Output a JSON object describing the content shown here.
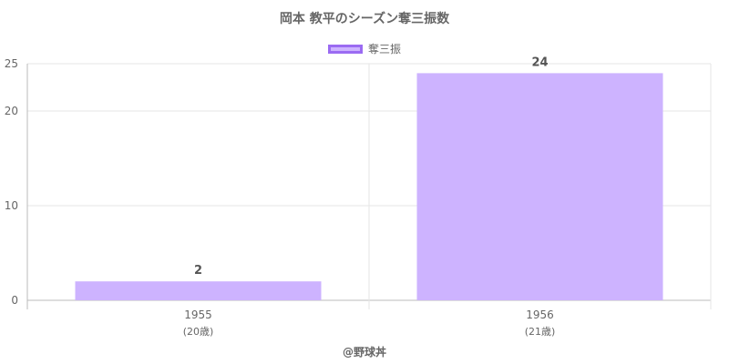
{
  "title": "岡本 教平のシーズン奪三振数",
  "legend": {
    "label": "奪三振",
    "swatch_fill": "#cdb3ff",
    "swatch_border": "#9b6bf2"
  },
  "credit": "@野球丼",
  "chart_data": {
    "type": "bar",
    "categories": [
      "1955",
      "1956"
    ],
    "sublabels": [
      "(20歳)",
      "(21歳)"
    ],
    "series": [
      {
        "name": "奪三振",
        "values": [
          2,
          24
        ]
      }
    ],
    "data_labels": [
      "2",
      "24"
    ],
    "yticks": [
      0,
      10,
      20,
      25
    ],
    "ylim": [
      0,
      25
    ],
    "grid": true,
    "legend_position": "top",
    "bar_color": "#cdb3ff",
    "grid_color": "#e6e6e6",
    "axis_color": "#bbbbbb"
  }
}
